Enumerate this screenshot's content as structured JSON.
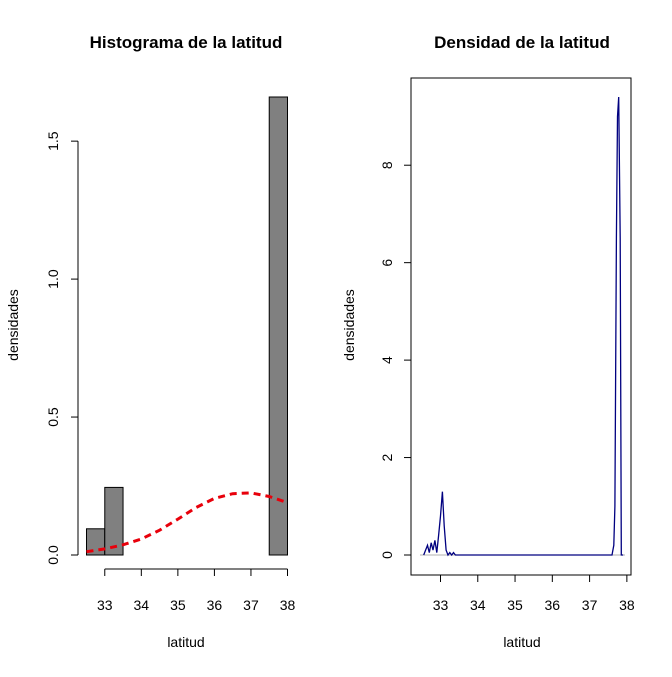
{
  "chart_data": [
    {
      "type": "bar",
      "title": "Histograma de la latitud",
      "xlabel": "latitud",
      "ylabel": "densidades",
      "bins": [
        {
          "x0": 32.5,
          "x1": 33.0,
          "value": 0.095
        },
        {
          "x0": 33.0,
          "x1": 33.5,
          "value": 0.245
        },
        {
          "x0": 33.5,
          "x1": 34.0,
          "value": 0.0
        },
        {
          "x0": 34.0,
          "x1": 34.5,
          "value": 0.0
        },
        {
          "x0": 34.5,
          "x1": 35.0,
          "value": 0.0
        },
        {
          "x0": 35.0,
          "x1": 35.5,
          "value": 0.0
        },
        {
          "x0": 35.5,
          "x1": 36.0,
          "value": 0.0
        },
        {
          "x0": 36.0,
          "x1": 36.5,
          "value": 0.0
        },
        {
          "x0": 36.5,
          "x1": 37.0,
          "value": 0.0
        },
        {
          "x0": 37.0,
          "x1": 37.5,
          "value": 0.0
        },
        {
          "x0": 37.5,
          "x1": 38.0,
          "value": 1.66
        }
      ],
      "bar_color": "#808080",
      "overlay_curve": {
        "style": "dashed",
        "color": "#e8000b",
        "x": [
          32.5,
          33.0,
          33.5,
          34.0,
          34.5,
          35.0,
          35.5,
          36.0,
          36.5,
          37.0,
          37.5,
          38.0
        ],
        "y": [
          0.012,
          0.022,
          0.037,
          0.058,
          0.09,
          0.13,
          0.172,
          0.205,
          0.222,
          0.225,
          0.212,
          0.19
        ]
      },
      "xticks": [
        "33",
        "34",
        "35",
        "36",
        "37",
        "38"
      ],
      "yticks": [
        "0.0",
        "0.5",
        "1.0",
        "1.5"
      ],
      "xlim": [
        32.5,
        38.0
      ],
      "ylim": [
        0,
        1.66
      ]
    },
    {
      "type": "line",
      "title": "Densidad de la latitud",
      "xlabel": "latitud",
      "ylabel": "densidades",
      "line_color": "#000080",
      "baseline_color": "#b0b0b0",
      "x": [
        32.55,
        32.6,
        32.65,
        32.7,
        32.75,
        32.8,
        32.85,
        32.9,
        32.95,
        33.0,
        33.05,
        33.1,
        33.15,
        33.2,
        33.25,
        33.3,
        33.35,
        33.4,
        33.45,
        33.5,
        37.6,
        37.65,
        37.68,
        37.72,
        37.75,
        37.78,
        37.82,
        37.85,
        37.9
      ],
      "y": [
        0.0,
        0.1,
        0.2,
        0.05,
        0.25,
        0.1,
        0.3,
        0.05,
        0.4,
        0.8,
        1.3,
        0.6,
        0.1,
        0.0,
        0.05,
        0.0,
        0.05,
        0.0,
        0.0,
        0.0,
        0.0,
        0.2,
        1.0,
        6.5,
        9.0,
        9.4,
        6.5,
        0.0,
        0.0
      ],
      "xticks": [
        "33",
        "34",
        "35",
        "36",
        "37",
        "38"
      ],
      "yticks": [
        "0",
        "2",
        "4",
        "6",
        "8"
      ],
      "xlim": [
        32.45,
        37.95
      ],
      "ylim": [
        0,
        9.4
      ]
    }
  ]
}
